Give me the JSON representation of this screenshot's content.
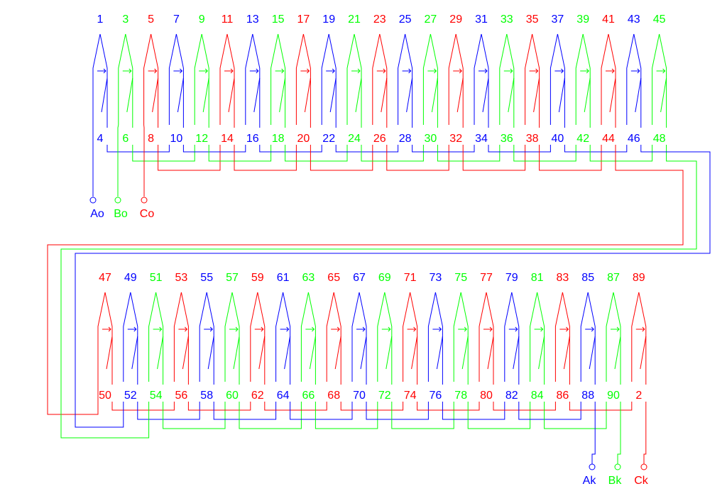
{
  "colors": {
    "A": "#0000ff",
    "B": "#00ff00",
    "C": "#ff0000",
    "background": "#ffffff"
  },
  "phase_sequence": [
    "A",
    "B",
    "C"
  ],
  "rows": [
    {
      "top_numbers": [
        "1",
        "3",
        "5",
        "7",
        "9",
        "11",
        "13",
        "15",
        "17",
        "19",
        "21",
        "23",
        "25",
        "27",
        "29",
        "31",
        "33",
        "35",
        "37",
        "39",
        "41",
        "43",
        "45"
      ],
      "top_colors": [
        "A",
        "B",
        "C",
        "A",
        "B",
        "C",
        "A",
        "B",
        "C",
        "A",
        "B",
        "C",
        "A",
        "B",
        "C",
        "A",
        "B",
        "C",
        "A",
        "B",
        "C",
        "A",
        "B"
      ],
      "bottom_numbers": [
        "4",
        "6",
        "8",
        "10",
        "12",
        "14",
        "16",
        "18",
        "20",
        "22",
        "24",
        "26",
        "28",
        "30",
        "32",
        "34",
        "36",
        "38",
        "40",
        "42",
        "44",
        "46",
        "48"
      ],
      "bottom_colors": [
        "A",
        "B",
        "C",
        "A",
        "B",
        "C",
        "A",
        "B",
        "C",
        "A",
        "B",
        "C",
        "A",
        "B",
        "C",
        "A",
        "B",
        "C",
        "A",
        "B",
        "C",
        "A",
        "B"
      ]
    },
    {
      "top_numbers": [
        "47",
        "49",
        "51",
        "53",
        "55",
        "57",
        "59",
        "61",
        "63",
        "65",
        "67",
        "69",
        "71",
        "73",
        "75",
        "77",
        "79",
        "81",
        "83",
        "85",
        "87",
        "89"
      ],
      "top_colors": [
        "C",
        "A",
        "B",
        "C",
        "A",
        "B",
        "C",
        "A",
        "B",
        "C",
        "A",
        "B",
        "C",
        "A",
        "B",
        "C",
        "A",
        "B",
        "C",
        "A",
        "B",
        "C"
      ],
      "bottom_numbers": [
        "50",
        "52",
        "54",
        "56",
        "58",
        "60",
        "62",
        "64",
        "66",
        "68",
        "70",
        "72",
        "74",
        "76",
        "78",
        "80",
        "82",
        "84",
        "86",
        "88",
        "90",
        "2"
      ],
      "bottom_colors": [
        "C",
        "A",
        "B",
        "C",
        "A",
        "B",
        "C",
        "A",
        "B",
        "C",
        "A",
        "B",
        "C",
        "A",
        "B",
        "C",
        "A",
        "B",
        "C",
        "A",
        "B",
        "C"
      ]
    }
  ],
  "terminals": {
    "start": [
      {
        "label": "Ao",
        "phase": "A"
      },
      {
        "label": "Bo",
        "phase": "B"
      },
      {
        "label": "Co",
        "phase": "C"
      }
    ],
    "end": [
      {
        "label": "Ak",
        "phase": "A"
      },
      {
        "label": "Bk",
        "phase": "B"
      },
      {
        "label": "Ck",
        "phase": "C"
      }
    ]
  }
}
